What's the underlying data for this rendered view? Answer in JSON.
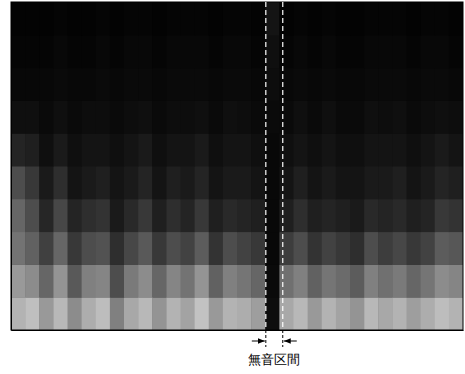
{
  "chart_data": {
    "type": "heatmap",
    "xlim": [
      0,
      32
    ],
    "ylim": [
      0,
      10
    ],
    "tick_labels": false,
    "color_range": [
      0,
      100
    ],
    "cells": [
      [
        70,
        75,
        60,
        72,
        55,
        68,
        74,
        50,
        66,
        72,
        58,
        70,
        64,
        76,
        60,
        70,
        68,
        62,
        5,
        66,
        72,
        60,
        70,
        64,
        58,
        72,
        66,
        70,
        62,
        68,
        74,
        70
      ],
      [
        60,
        55,
        40,
        58,
        35,
        50,
        52,
        30,
        48,
        55,
        40,
        52,
        45,
        58,
        38,
        50,
        46,
        40,
        4,
        44,
        50,
        38,
        46,
        42,
        36,
        50,
        44,
        48,
        40,
        46,
        55,
        52
      ],
      [
        45,
        38,
        25,
        40,
        22,
        30,
        32,
        18,
        28,
        35,
        22,
        30,
        26,
        36,
        20,
        30,
        26,
        22,
        3,
        24,
        30,
        20,
        26,
        22,
        18,
        30,
        24,
        28,
        22,
        26,
        36,
        34
      ],
      [
        40,
        30,
        15,
        28,
        14,
        18,
        20,
        10,
        16,
        22,
        12,
        18,
        14,
        22,
        12,
        16,
        14,
        12,
        3,
        12,
        18,
        12,
        14,
        12,
        10,
        16,
        14,
        16,
        12,
        14,
        22,
        20
      ],
      [
        30,
        22,
        10,
        18,
        8,
        10,
        12,
        8,
        10,
        14,
        8,
        12,
        10,
        14,
        8,
        10,
        10,
        8,
        3,
        8,
        12,
        8,
        10,
        8,
        8,
        10,
        10,
        12,
        8,
        10,
        14,
        12
      ],
      [
        14,
        12,
        6,
        10,
        6,
        8,
        8,
        6,
        8,
        10,
        6,
        8,
        8,
        10,
        6,
        8,
        8,
        6,
        3,
        6,
        8,
        6,
        8,
        6,
        6,
        8,
        8,
        8,
        6,
        8,
        10,
        8
      ],
      [
        6,
        6,
        4,
        6,
        4,
        5,
        5,
        4,
        5,
        6,
        4,
        5,
        5,
        6,
        4,
        6,
        5,
        4,
        4,
        4,
        6,
        4,
        6,
        4,
        4,
        6,
        5,
        6,
        4,
        5,
        6,
        5
      ],
      [
        3,
        3,
        3,
        4,
        3,
        3,
        4,
        3,
        4,
        4,
        3,
        4,
        4,
        4,
        3,
        4,
        4,
        3,
        5,
        3,
        4,
        3,
        4,
        3,
        3,
        4,
        4,
        4,
        3,
        4,
        4,
        3
      ],
      [
        2,
        2,
        2,
        3,
        2,
        2,
        3,
        2,
        3,
        3,
        2,
        3,
        3,
        3,
        2,
        3,
        3,
        2,
        6,
        2,
        3,
        2,
        3,
        2,
        2,
        3,
        3,
        3,
        2,
        3,
        3,
        2
      ],
      [
        1,
        1,
        1,
        2,
        1,
        1,
        2,
        1,
        2,
        2,
        1,
        2,
        2,
        2,
        1,
        2,
        2,
        1,
        8,
        1,
        2,
        1,
        2,
        1,
        1,
        2,
        2,
        2,
        1,
        2,
        2,
        1
      ]
    ],
    "annotations": [
      {
        "text": "無音区間",
        "x": [
          18.04,
          19.24
        ]
      }
    ]
  }
}
